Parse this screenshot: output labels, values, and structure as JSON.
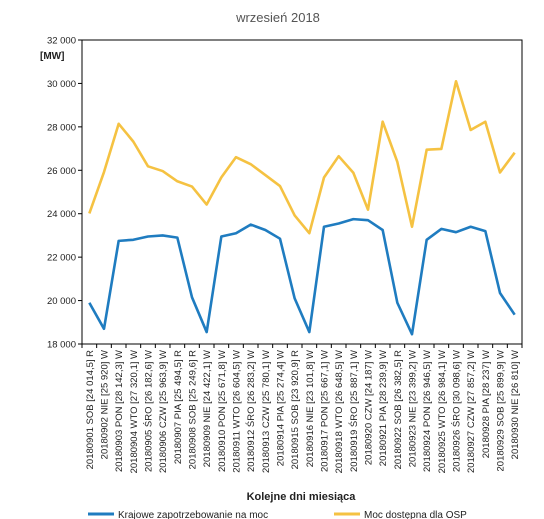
{
  "chart_data": {
    "type": "line",
    "title": "wrzesień 2018",
    "ylabel": "[MW]",
    "xlabel": "Kolejne dni miesiąca",
    "ylim": [
      18000,
      32000
    ],
    "yticks": [
      18000,
      20000,
      22000,
      24000,
      26000,
      28000,
      30000,
      32000
    ],
    "ytick_labels": [
      "18 000",
      "20 000",
      "22 000",
      "24 000",
      "26 000",
      "28 000",
      "30 000",
      "32 000"
    ],
    "grid": false,
    "legend_position": "bottom",
    "categories": [
      "20180901 SOB [24 014,5] R",
      "20180902 NIE [25 920] W",
      "20180903 PON [28 142,3] W",
      "20180904 WTO [27 320,1] W",
      "20180905 ŚRO [26 182,6] W",
      "20180906 CZW [25 963,9] W",
      "20180907 PIA [25 494,5] R",
      "20180908 SOB [25 249,6] R",
      "20180909 NIE [24 422,1] W",
      "20180910 PON [25 671,8] W",
      "20180911 WTO [26 604,5] W",
      "20180912 ŚRO [26 283,2] W",
      "20180913 CZW [25 780,1] W",
      "20180914 PIA [25 274,4] W",
      "20180915 SOB [23 920,9] R",
      "20180916 NIE [23 101,8] W",
      "20180917 PON [25 667,1] W",
      "20180918 WTO [26 648,5] W",
      "20180919 ŚRO [25 887,1] W",
      "20180920 CZW [24 187] W",
      "20180921 PIA [28 239,9] W",
      "20180922 SOB [26 382,5] R",
      "20180923 NIE [23 399,2] W",
      "20180924 PON [26 946,5] W",
      "20180925 WTO [26 984,1] W",
      "20180926 ŚRO [30 098,6] W",
      "20180927 CZW [27 857,2] W",
      "20180928 PIA [28 237] W",
      "20180929 SOB [25 899,9] W",
      "20180930 NIE [26 810] W"
    ],
    "series": [
      {
        "name": "Krajowe zapotrzebowanie na moc",
        "color": "#1f7cc0",
        "values": [
          19900,
          18700,
          22750,
          22800,
          22950,
          23000,
          22900,
          20150,
          18550,
          22950,
          23100,
          23500,
          23250,
          22850,
          20100,
          18550,
          23400,
          23550,
          23750,
          23700,
          23250,
          19900,
          18450,
          22800,
          23300,
          23150,
          23400,
          23200,
          20350,
          19350
        ]
      },
      {
        "name": "Moc dostępna dla OSP",
        "color": "#f5c242",
        "values": [
          24014.5,
          25920,
          28142.3,
          27320.1,
          26182.6,
          25963.9,
          25494.5,
          25249.6,
          24422.1,
          25671.8,
          26604.5,
          26283.2,
          25780.1,
          25274.4,
          23920.9,
          23101.8,
          25667.1,
          26648.5,
          25887.1,
          24187,
          28239.9,
          26382.5,
          23399.2,
          26946.5,
          26984.1,
          30098.6,
          27857.2,
          28237,
          25899.9,
          26810
        ]
      }
    ]
  }
}
